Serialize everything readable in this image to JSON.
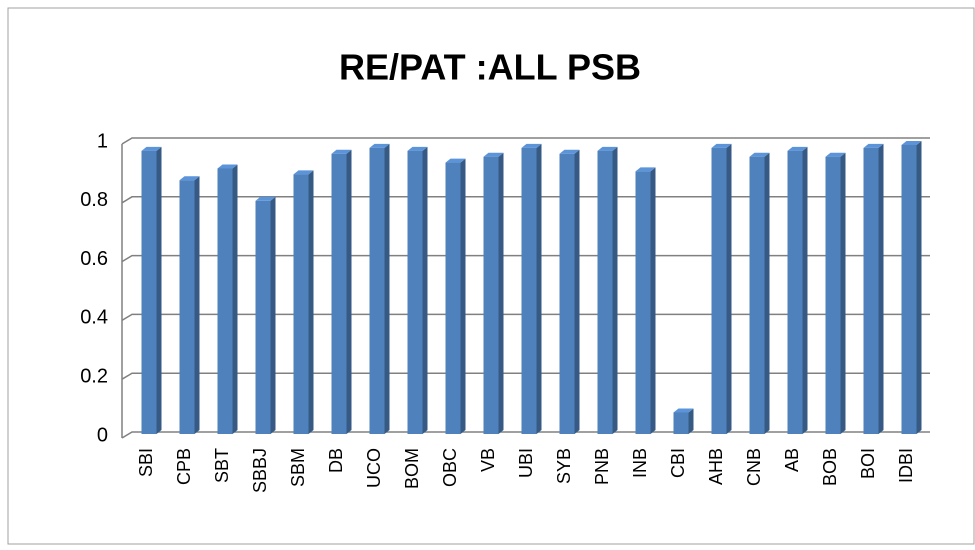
{
  "chart_data": {
    "type": "bar",
    "title": "RE/PAT :ALL PSB",
    "categories": [
      "SBI",
      "CPB",
      "SBT",
      "SBBJ",
      "SBM",
      "DB",
      "UCO",
      "BOM",
      "OBC",
      "VB",
      "UBI",
      "SYB",
      "PNB",
      "INB",
      "CBI",
      "AHB",
      "CNB",
      "AB",
      "BOB",
      "BOI",
      "IDBI"
    ],
    "values": [
      0.97,
      0.87,
      0.91,
      0.8,
      0.89,
      0.96,
      0.98,
      0.97,
      0.93,
      0.95,
      0.98,
      0.96,
      0.97,
      0.9,
      0.08,
      0.98,
      0.95,
      0.97,
      0.95,
      0.98,
      0.99
    ],
    "color": "#4f81bd",
    "ylim": [
      0,
      1
    ],
    "yticks": [
      0,
      0.2,
      0.4,
      0.6,
      0.8,
      1
    ],
    "grid": true
  }
}
